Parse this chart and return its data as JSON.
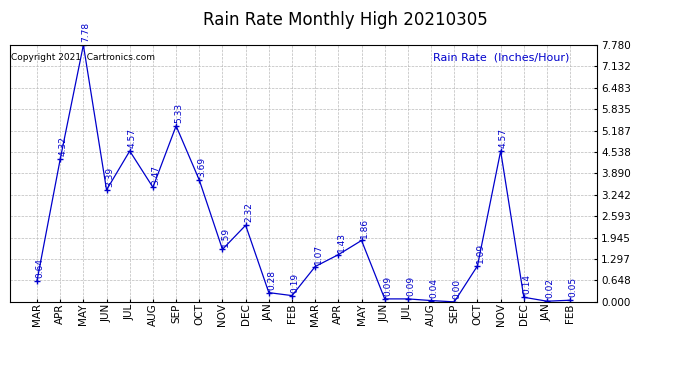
{
  "title": "Rain Rate Monthly High 20210305",
  "ylabel": "Rain Rate  (Inches/Hour)",
  "copyright_text": "Copyright 2021  Cartronics.com",
  "months": [
    "MAR",
    "APR",
    "MAY",
    "JUN",
    "JUL",
    "AUG",
    "SEP",
    "OCT",
    "NOV",
    "DEC",
    "JAN",
    "FEB",
    "MAR",
    "APR",
    "MAY",
    "JUN",
    "JUL",
    "AUG",
    "SEP",
    "OCT",
    "NOV",
    "DEC",
    "JAN",
    "FEB"
  ],
  "values": [
    0.64,
    4.32,
    7.78,
    3.39,
    4.57,
    3.47,
    5.33,
    3.69,
    1.59,
    2.32,
    0.28,
    0.19,
    1.07,
    1.43,
    1.86,
    0.09,
    0.09,
    0.04,
    0.0,
    1.09,
    4.57,
    0.14,
    0.02,
    0.05
  ],
  "ylim": [
    0.0,
    7.78
  ],
  "yticks": [
    0.0,
    0.648,
    1.297,
    1.945,
    2.593,
    3.242,
    3.89,
    4.538,
    5.187,
    5.835,
    6.483,
    7.132,
    7.78
  ],
  "line_color": "#0000cc",
  "marker_color": "#0000cc",
  "title_color": "#000000",
  "ylabel_color": "#0000cc",
  "copyright_color": "#000000",
  "bg_color": "#ffffff",
  "grid_color": "#bbbbbb",
  "title_fontsize": 12,
  "ylabel_fontsize": 8,
  "copyright_fontsize": 6.5,
  "annotation_fontsize": 6.5,
  "tick_fontsize": 7.5
}
